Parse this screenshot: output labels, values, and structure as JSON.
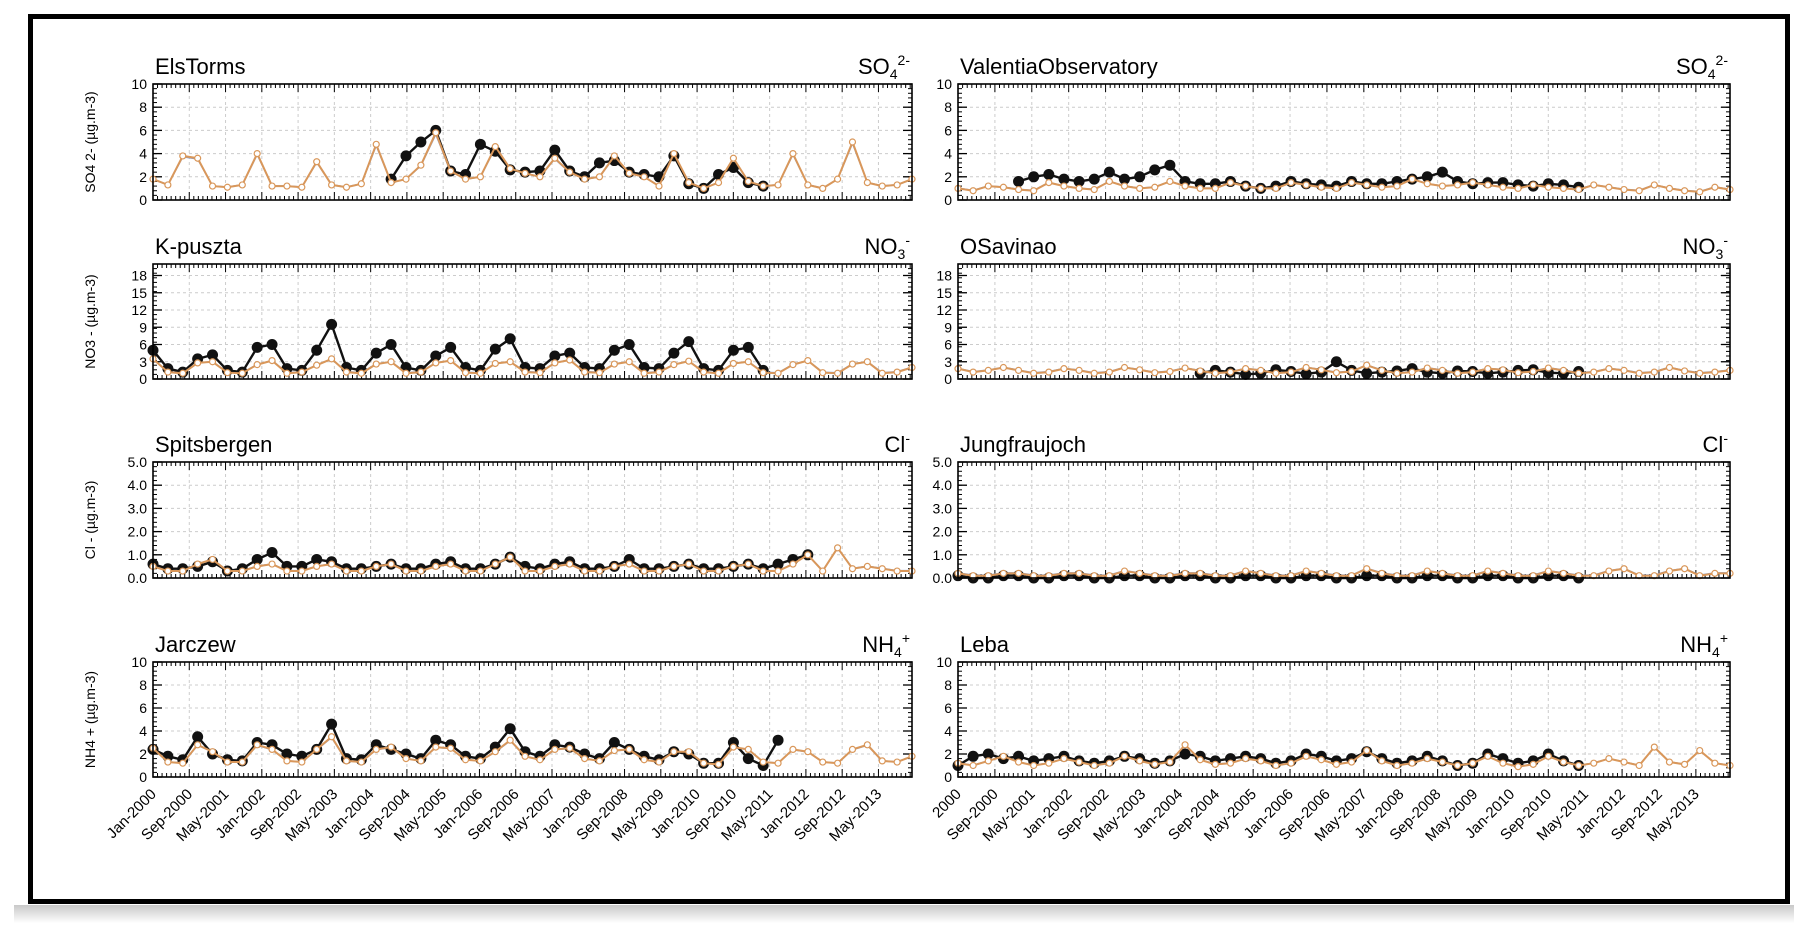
{
  "chart_data": {
    "type": "line",
    "x_range": [
      "Jan-2000",
      "Dec-2013"
    ],
    "tick_labels": [
      "Jan-2000",
      "Sep-2000",
      "May-2001",
      "Jan-2002",
      "Sep-2002",
      "May-2003",
      "Jan-2004",
      "Sep-2004",
      "May-2005",
      "Jan-2006",
      "Sep-2006",
      "May-2007",
      "Jan-2008",
      "Sep-2008",
      "May-2009",
      "Jan-2010",
      "Sep-2010",
      "May-2011",
      "Jan-2012",
      "Sep-2012",
      "May-2013"
    ],
    "tick_labels_right_first": "2000",
    "grid": true,
    "series_colors": {
      "observed": "#111111",
      "model_a": "#d9975a",
      "model_b": "#8a9bc4"
    },
    "panels": [
      {
        "station": "ElsTorms",
        "species": "SO4",
        "sup": "2-",
        "ylabel": "SO4 2- (µg.m-3)",
        "ylim": [
          0,
          10
        ],
        "yticks": [
          "0",
          "2",
          "4",
          "6",
          "8",
          "10"
        ],
        "obs_end": 2010.85,
        "model": [
          1.8,
          1.3,
          3.8,
          3.6,
          1.2,
          1.1,
          1.3,
          4.0,
          1.2,
          1.2,
          1.1,
          3.3,
          1.3,
          1.1,
          1.4,
          4.8,
          1.5,
          1.8,
          3.0,
          5.8,
          2.5,
          1.8,
          2.0,
          4.6,
          2.7,
          2.3,
          2.0,
          3.6,
          2.4,
          1.8,
          2.0,
          3.8,
          2.3,
          2.0,
          1.2,
          4.0,
          1.5,
          1.0,
          1.5,
          3.6,
          1.6,
          1.2,
          1.3,
          4.0,
          1.3,
          1.0,
          1.8,
          5.0,
          1.5,
          1.2,
          1.3,
          1.8
        ],
        "obs": [
          null,
          null,
          null,
          null,
          null,
          null,
          null,
          null,
          null,
          null,
          null,
          null,
          null,
          null,
          null,
          null,
          1.8,
          3.8,
          5.0,
          6.0,
          2.5,
          2.2,
          4.8,
          4.2,
          2.6,
          2.4,
          2.5,
          4.3,
          2.5,
          2.0,
          3.2,
          3.4,
          2.4,
          2.2,
          2.0,
          3.8,
          1.4,
          1.0,
          2.2,
          2.8,
          1.5,
          1.2,
          null,
          null,
          null,
          null,
          null,
          null,
          null,
          null,
          null,
          null
        ]
      },
      {
        "station": "ValentiaObservatory",
        "species": "SO4",
        "sup": "2-",
        "ylabel": "",
        "ylim": [
          0,
          10
        ],
        "yticks": [
          "0",
          "2",
          "4",
          "6",
          "8",
          "10"
        ],
        "obs_end": 2010.7,
        "model": [
          1.0,
          0.8,
          1.2,
          1.1,
          0.9,
          0.8,
          1.5,
          1.2,
          1.0,
          0.9,
          1.6,
          1.2,
          1.0,
          1.1,
          1.6,
          1.2,
          1.0,
          1.0,
          1.5,
          1.2,
          1.0,
          1.0,
          1.5,
          1.3,
          1.1,
          1.0,
          1.5,
          1.3,
          1.1,
          1.2,
          1.8,
          1.4,
          1.2,
          1.3,
          1.5,
          1.3,
          1.1,
          1.0,
          1.3,
          1.1,
          1.0,
          0.9,
          1.3,
          1.1,
          0.9,
          0.8,
          1.3,
          1.0,
          0.8,
          0.7,
          1.1,
          0.9
        ],
        "obs": [
          null,
          null,
          null,
          null,
          1.6,
          2.0,
          2.2,
          1.8,
          1.6,
          1.8,
          2.4,
          1.8,
          2.0,
          2.6,
          3.0,
          1.6,
          1.4,
          1.4,
          1.6,
          1.2,
          1.0,
          1.2,
          1.6,
          1.4,
          1.3,
          1.2,
          1.6,
          1.4,
          1.4,
          1.6,
          1.8,
          2.0,
          2.4,
          1.6,
          1.4,
          1.5,
          1.5,
          1.3,
          1.2,
          1.4,
          1.3,
          1.1,
          null,
          null,
          null,
          null,
          null,
          null,
          null,
          null,
          null,
          null
        ]
      },
      {
        "station": "K-puszta",
        "species": "NO3",
        "sup": "-",
        "ylabel": "NO3 - (µg.m-3)",
        "ylim": [
          0,
          20
        ],
        "yticks": [
          "0",
          "3",
          "6",
          "9",
          "12",
          "15",
          "18"
        ],
        "obs_end": 2010.75,
        "model": [
          3.5,
          1.2,
          1.0,
          2.8,
          3.0,
          1.1,
          1.0,
          2.5,
          3.2,
          1.0,
          1.2,
          2.4,
          3.5,
          1.2,
          1.0,
          2.6,
          3.0,
          1.0,
          1.2,
          2.8,
          3.2,
          1.1,
          1.0,
          2.7,
          3.0,
          1.2,
          1.1,
          2.8,
          3.3,
          1.2,
          1.1,
          2.6,
          3.0,
          1.0,
          1.2,
          2.5,
          3.1,
          1.2,
          1.0,
          2.7,
          3.0,
          1.1,
          1.0,
          2.5,
          3.2,
          1.1,
          1.0,
          2.6,
          3.0,
          1.0,
          1.2,
          2.0
        ],
        "obs": [
          5.0,
          1.8,
          1.2,
          3.5,
          4.2,
          1.5,
          1.2,
          5.5,
          6.0,
          1.8,
          1.5,
          5.0,
          9.5,
          2.0,
          1.5,
          4.5,
          6.0,
          2.0,
          1.5,
          4.0,
          5.5,
          2.0,
          1.5,
          5.2,
          7.0,
          2.0,
          1.8,
          4.0,
          4.5,
          2.0,
          1.8,
          5.0,
          6.0,
          2.0,
          1.8,
          4.5,
          6.5,
          1.8,
          1.5,
          5.0,
          5.5,
          1.5,
          null,
          null,
          null,
          null,
          null,
          null,
          null,
          null,
          null,
          null
        ]
      },
      {
        "station": "OSavinao",
        "species": "NO3",
        "sup": "-",
        "ylabel": "",
        "ylim": [
          0,
          20
        ],
        "yticks": [
          "0",
          "3",
          "6",
          "9",
          "12",
          "15",
          "18"
        ],
        "obs_end": 2010.8,
        "model": [
          1.8,
          1.2,
          1.5,
          2.0,
          1.5,
          1.0,
          1.2,
          1.8,
          1.5,
          1.0,
          1.2,
          2.0,
          1.6,
          1.1,
          1.3,
          1.9,
          1.4,
          1.0,
          1.2,
          1.8,
          1.5,
          1.0,
          1.2,
          2.0,
          1.6,
          1.1,
          1.3,
          2.4,
          1.5,
          1.0,
          1.2,
          1.9,
          1.5,
          1.0,
          1.2,
          1.8,
          1.6,
          1.1,
          1.3,
          1.9,
          1.5,
          1.0,
          1.2,
          1.8,
          1.5,
          1.0,
          1.2,
          2.0,
          1.4,
          1.0,
          1.2,
          1.5
        ],
        "obs": [
          null,
          null,
          null,
          null,
          null,
          null,
          null,
          null,
          null,
          null,
          null,
          null,
          null,
          null,
          null,
          null,
          1.0,
          1.5,
          1.2,
          0.8,
          1.0,
          1.6,
          1.3,
          0.9,
          1.2,
          3.0,
          1.5,
          1.0,
          1.2,
          1.4,
          1.8,
          1.2,
          1.0,
          1.4,
          1.3,
          1.0,
          1.2,
          1.5,
          1.6,
          1.1,
          1.0,
          1.3,
          null,
          null,
          null,
          null,
          null,
          null,
          null,
          null,
          null,
          null
        ]
      },
      {
        "station": "Spitsbergen",
        "species": "Cl",
        "sup": "-",
        "ylabel": "Cl - (µg.m-3)",
        "ylim": [
          0,
          5
        ],
        "yticks": [
          "0.0",
          "1.0",
          "2.0",
          "3.0",
          "4.0",
          "5.0"
        ],
        "obs_end": 2011.9,
        "model": [
          0.5,
          0.3,
          0.3,
          0.6,
          0.8,
          0.3,
          0.3,
          0.5,
          0.6,
          0.3,
          0.3,
          0.5,
          0.6,
          0.3,
          0.3,
          0.5,
          0.6,
          0.3,
          0.3,
          0.5,
          0.6,
          0.3,
          0.3,
          0.6,
          0.9,
          0.3,
          0.3,
          0.5,
          0.6,
          0.3,
          0.3,
          0.5,
          0.6,
          0.3,
          0.3,
          0.5,
          0.6,
          0.3,
          0.3,
          0.5,
          0.6,
          0.3,
          0.3,
          0.6,
          1.0,
          0.3,
          1.3,
          0.4,
          0.5,
          0.4,
          0.3,
          0.3
        ],
        "obs": [
          0.6,
          0.4,
          0.4,
          0.5,
          0.7,
          0.3,
          0.4,
          0.8,
          1.1,
          0.5,
          0.5,
          0.8,
          0.7,
          0.4,
          0.4,
          0.5,
          0.6,
          0.4,
          0.4,
          0.6,
          0.7,
          0.4,
          0.4,
          0.6,
          0.9,
          0.5,
          0.4,
          0.6,
          0.7,
          0.4,
          0.4,
          0.5,
          0.8,
          0.4,
          0.4,
          0.5,
          0.6,
          0.4,
          0.4,
          0.5,
          0.6,
          0.4,
          0.6,
          0.8,
          1.0,
          null,
          null,
          null,
          null,
          null,
          null,
          null
        ]
      },
      {
        "station": "Jungfraujoch",
        "species": "Cl",
        "sup": "-",
        "ylabel": "",
        "ylim": [
          0,
          5
        ],
        "yticks": [
          "0.0",
          "1.0",
          "2.0",
          "3.0",
          "4.0",
          "5.0"
        ],
        "obs_end": 2010.8,
        "model": [
          0.2,
          0.1,
          0.1,
          0.2,
          0.2,
          0.1,
          0.1,
          0.2,
          0.2,
          0.1,
          0.1,
          0.3,
          0.2,
          0.1,
          0.1,
          0.2,
          0.2,
          0.1,
          0.1,
          0.3,
          0.2,
          0.1,
          0.1,
          0.3,
          0.2,
          0.1,
          0.1,
          0.4,
          0.2,
          0.1,
          0.1,
          0.3,
          0.2,
          0.1,
          0.1,
          0.3,
          0.2,
          0.1,
          0.1,
          0.3,
          0.2,
          0.1,
          0.1,
          0.3,
          0.4,
          0.1,
          0.1,
          0.3,
          0.4,
          0.1,
          0.2,
          0.2
        ],
        "obs": [
          0.1,
          0.0,
          0.0,
          0.1,
          0.1,
          0.0,
          0.0,
          0.1,
          0.1,
          0.0,
          0.0,
          0.1,
          0.1,
          0.0,
          0.0,
          0.1,
          0.1,
          0.0,
          0.0,
          0.1,
          0.1,
          0.0,
          0.0,
          0.1,
          0.1,
          0.0,
          0.0,
          0.1,
          0.1,
          0.0,
          0.0,
          0.1,
          0.1,
          0.0,
          0.0,
          0.1,
          0.1,
          0.0,
          0.0,
          0.1,
          0.1,
          0.0,
          null,
          null,
          null,
          null,
          null,
          null,
          null,
          null,
          null,
          null
        ]
      },
      {
        "station": "Jarczew",
        "species": "NH4",
        "sup": "+",
        "ylabel": "NH4 + (µg.m-3)",
        "ylim": [
          0,
          10
        ],
        "yticks": [
          "0",
          "2",
          "4",
          "6",
          "8",
          "10"
        ],
        "obs_end": 2010.9,
        "model": [
          2.5,
          1.3,
          1.2,
          2.8,
          2.2,
          1.3,
          1.3,
          2.8,
          2.4,
          1.4,
          1.3,
          2.4,
          3.5,
          1.4,
          1.3,
          2.4,
          2.6,
          1.6,
          1.4,
          2.6,
          2.5,
          1.5,
          1.4,
          2.2,
          3.2,
          1.8,
          1.5,
          2.4,
          2.5,
          1.6,
          1.4,
          2.3,
          2.4,
          1.5,
          1.3,
          2.2,
          2.2,
          1.2,
          1.1,
          2.6,
          2.4,
          1.3,
          1.2,
          2.4,
          2.2,
          1.3,
          1.2,
          2.4,
          2.8,
          1.4,
          1.3,
          1.8
        ],
        "obs": [
          2.4,
          1.8,
          1.5,
          3.5,
          2.0,
          1.5,
          1.4,
          3.0,
          2.8,
          2.0,
          1.8,
          2.4,
          4.6,
          1.6,
          1.5,
          2.8,
          2.4,
          2.0,
          1.6,
          3.2,
          2.8,
          1.8,
          1.6,
          2.6,
          4.2,
          2.2,
          1.8,
          2.8,
          2.6,
          2.0,
          1.6,
          3.0,
          2.4,
          1.8,
          1.5,
          2.2,
          2.0,
          1.2,
          1.2,
          3.0,
          1.6,
          1.0,
          3.2,
          null,
          null,
          null,
          null,
          null,
          null,
          null,
          null,
          null
        ]
      },
      {
        "station": "Leba",
        "species": "NH4",
        "sup": "+",
        "ylabel": "",
        "ylim": [
          0,
          10
        ],
        "yticks": [
          "0",
          "2",
          "4",
          "6",
          "8",
          "10"
        ],
        "obs_end": 2010.8,
        "model": [
          1.2,
          1.0,
          1.4,
          1.8,
          1.3,
          1.0,
          1.2,
          1.6,
          1.3,
          1.0,
          1.2,
          1.8,
          1.4,
          1.1,
          1.3,
          2.8,
          1.5,
          1.1,
          1.2,
          1.6,
          1.4,
          1.0,
          1.2,
          1.8,
          1.5,
          1.1,
          1.3,
          2.3,
          1.4,
          1.0,
          1.2,
          1.6,
          1.3,
          1.0,
          1.2,
          1.8,
          1.2,
          0.9,
          1.1,
          1.8,
          1.3,
          1.0,
          1.2,
          1.6,
          1.3,
          1.0,
          2.6,
          1.3,
          1.1,
          2.3,
          1.2,
          1.0
        ],
        "obs": [
          1.0,
          1.8,
          2.0,
          1.6,
          1.8,
          1.4,
          1.6,
          1.8,
          1.4,
          1.2,
          1.4,
          1.8,
          1.6,
          1.2,
          1.4,
          2.0,
          1.8,
          1.4,
          1.6,
          1.8,
          1.6,
          1.2,
          1.4,
          2.0,
          1.8,
          1.4,
          1.6,
          2.2,
          1.6,
          1.2,
          1.4,
          1.8,
          1.4,
          1.0,
          1.2,
          2.0,
          1.6,
          1.2,
          1.4,
          2.0,
          1.4,
          1.0,
          null,
          null,
          null,
          null,
          null,
          null,
          null,
          null,
          null,
          null
        ]
      }
    ]
  }
}
